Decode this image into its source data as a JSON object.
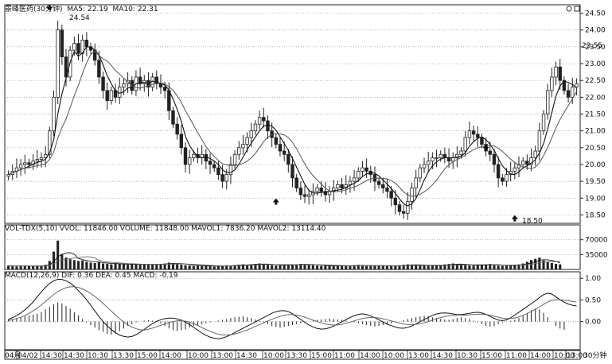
{
  "chart_data": [
    {
      "type": "candlestick",
      "title": "",
      "header": {
        "name": "景峰医药(30分钟)",
        "ma5_label": "MA5: 22.19",
        "ma10_label": "MA10: 22.31"
      },
      "yticks": [
        18.5,
        19.0,
        19.5,
        20.0,
        20.5,
        21.0,
        21.5,
        22.0,
        22.5,
        23.0,
        23.5,
        24.0,
        24.5
      ],
      "ytick_labels": [
        "18.50",
        "19.00",
        "19.50",
        "20.00",
        "20.50",
        "21.00",
        "21.50",
        "22.00",
        "22.50",
        "23.00",
        "23.50",
        "24.00",
        "24.50"
      ],
      "ylim": [
        18.25,
        24.75
      ],
      "current_price_label": "23.55",
      "annotations": [
        {
          "text": "24.54",
          "x": 14,
          "y": 24.54
        },
        {
          "text": "18.50",
          "x": 124,
          "y": 18.5
        }
      ],
      "up_arrows_at_x": [
        65,
        123,
        159,
        159
      ],
      "down_arrows_at_x": [
        10,
        116,
        149
      ],
      "closes": [
        19.7,
        19.8,
        19.9,
        20.0,
        20.05,
        20.0,
        20.1,
        20.15,
        20.2,
        20.3,
        21.0,
        22.0,
        24.0,
        23.2,
        22.6,
        23.4,
        23.6,
        23.3,
        23.7,
        23.5,
        23.4,
        23.1,
        22.6,
        22.2,
        21.9,
        22.2,
        22.0,
        22.3,
        22.4,
        22.5,
        22.2,
        22.6,
        22.4,
        22.5,
        22.3,
        22.6,
        22.4,
        22.3,
        22.2,
        21.6,
        21.2,
        20.9,
        20.5,
        20.0,
        20.2,
        20.3,
        20.2,
        20.3,
        20.1,
        20.0,
        19.9,
        19.7,
        19.5,
        19.7,
        20.0,
        20.3,
        20.5,
        20.6,
        20.8,
        21.0,
        21.2,
        21.4,
        21.3,
        21.0,
        20.8,
        20.6,
        20.4,
        20.3,
        20.0,
        19.6,
        19.3,
        19.1,
        19.05,
        19.1,
        19.2,
        19.3,
        19.2,
        19.1,
        19.2,
        19.3,
        19.4,
        19.3,
        19.4,
        19.5,
        19.6,
        19.8,
        19.9,
        19.8,
        19.7,
        19.5,
        19.4,
        19.3,
        19.2,
        19.0,
        18.8,
        18.6,
        18.55,
        18.9,
        19.3,
        19.6,
        19.9,
        20.0,
        20.1,
        20.2,
        20.2,
        20.3,
        20.2,
        20.1,
        20.2,
        20.3,
        20.4,
        20.8,
        21.0,
        20.9,
        20.8,
        20.6,
        20.4,
        20.3,
        20.0,
        19.6,
        19.5,
        19.7,
        19.8,
        19.9,
        20.0,
        20.1,
        20.0,
        20.2,
        20.4,
        21.0,
        21.5,
        22.2,
        22.6,
        22.9,
        22.5,
        22.2,
        22.0,
        22.3,
        22.4
      ],
      "xaxis_labels": [
        "04月",
        "04/02",
        "14:30",
        "14:30",
        "10:30",
        "13:30",
        "15:00",
        "14:00",
        "10:00",
        "13:00",
        "14:30",
        "10:00",
        "13:30",
        "15:00",
        "11:00",
        "14:00",
        "10:00",
        "13:00",
        "14:30",
        "10:30",
        "15:00",
        "11:00",
        "14:00",
        "10:00",
        "13:00",
        "30分钟"
      ]
    },
    {
      "type": "bar",
      "header": {
        "text": "VOL-TDX(5,10)  VVOL: 11846.00  VOLUME: 11848.00  MAVOL1: 7836.20  MAVOL2: 13114.40"
      },
      "yticks": [
        35000,
        70000
      ],
      "ytick_labels": [
        "35000",
        "70000"
      ],
      "ylim": [
        0,
        90000
      ],
      "values": [
        9000,
        8000,
        7000,
        9000,
        8500,
        8000,
        7500,
        9000,
        8000,
        11000,
        20000,
        42000,
        68000,
        36000,
        28000,
        24000,
        22000,
        20000,
        21000,
        18000,
        16000,
        15000,
        17000,
        14000,
        13000,
        12000,
        14000,
        13000,
        12000,
        11000,
        13000,
        12000,
        11000,
        12000,
        11000,
        13000,
        12000,
        13000,
        14000,
        16000,
        15000,
        12000,
        11000,
        10000,
        9000,
        8000,
        8500,
        8000,
        9000,
        7500,
        7000,
        8000,
        9000,
        10000,
        9000,
        10000,
        11000,
        12000,
        11000,
        12000,
        13000,
        14000,
        12000,
        11000,
        10000,
        9000,
        10000,
        11000,
        12000,
        11000,
        12000,
        13000,
        12000,
        11000,
        10000,
        9000,
        8000,
        9000,
        8500,
        8000,
        9000,
        8000,
        8500,
        9000,
        10000,
        11000,
        9000,
        8000,
        8500,
        9000,
        9500,
        8000,
        7500,
        8000,
        9000,
        10000,
        11000,
        12000,
        11000,
        10000,
        9000,
        9500,
        9000,
        8500,
        9000,
        10000,
        12000,
        13000,
        14000,
        12000,
        11000,
        10000,
        9500,
        9000,
        10000,
        11000,
        12000,
        13000,
        10000,
        9000,
        8500,
        9000,
        10000,
        11000,
        12000,
        14000,
        18000,
        22000,
        25000,
        28000,
        21000,
        17000,
        15000,
        13000,
        12000
      ]
    },
    {
      "type": "bar",
      "header": {
        "text": "MACD(12,26,9)  DIF: 0.36  DEA: 0.45  MACD: -0.19"
      },
      "yticks": [
        0.0,
        0.5,
        1.0
      ],
      "ytick_labels": [
        "0.00",
        "0.50",
        "1.00"
      ],
      "ylim": [
        -0.65,
        1.15
      ],
      "histogram": [
        0.05,
        0.06,
        0.08,
        0.1,
        0.12,
        0.14,
        0.16,
        0.18,
        0.22,
        0.28,
        0.34,
        0.4,
        0.44,
        0.42,
        0.36,
        0.3,
        0.22,
        0.14,
        0.06,
        -0.02,
        -0.08,
        -0.14,
        -0.2,
        -0.24,
        -0.28,
        -0.3,
        -0.28,
        -0.22,
        -0.16,
        -0.1,
        -0.06,
        -0.02,
        0.0,
        0.02,
        0.03,
        0.02,
        0.0,
        -0.04,
        -0.1,
        -0.16,
        -0.2,
        -0.22,
        -0.2,
        -0.18,
        -0.14,
        -0.1,
        -0.08,
        -0.06,
        -0.04,
        -0.02,
        0.0,
        0.02,
        0.04,
        0.06,
        0.08,
        0.1,
        0.11,
        0.12,
        0.1,
        0.08,
        0.05,
        0.02,
        -0.02,
        -0.06,
        -0.1,
        -0.12,
        -0.14,
        -0.12,
        -0.1,
        -0.08,
        -0.06,
        -0.04,
        -0.02,
        0.0,
        0.02,
        0.04,
        0.05,
        0.06,
        0.07,
        0.06,
        0.05,
        0.04,
        0.02,
        0.0,
        -0.02,
        -0.04,
        -0.06,
        -0.08,
        -0.1,
        -0.12,
        -0.1,
        -0.08,
        -0.06,
        -0.04,
        -0.02,
        0.0,
        0.03,
        0.06,
        0.08,
        0.1,
        0.12,
        0.13,
        0.12,
        0.1,
        0.08,
        0.06,
        0.05,
        0.04,
        0.06,
        0.08,
        0.1,
        0.08,
        0.06,
        0.02,
        -0.02,
        -0.06,
        -0.1,
        -0.12,
        -0.1,
        -0.06,
        -0.02,
        0.0,
        0.02,
        0.04,
        0.08,
        0.14,
        0.2,
        0.26,
        0.3,
        0.28,
        0.2,
        0.1,
        0.0,
        -0.1,
        -0.16,
        -0.19
      ],
      "dif": [
        0.05,
        0.1,
        0.16,
        0.24,
        0.34,
        0.46,
        0.6,
        0.74,
        0.86,
        0.94,
        0.98,
        0.97,
        0.92,
        0.84,
        0.72,
        0.6,
        0.46,
        0.3,
        0.14,
        0.0,
        -0.12,
        -0.22,
        -0.3,
        -0.34,
        -0.36,
        -0.34,
        -0.28,
        -0.2,
        -0.12,
        -0.04,
        0.02,
        0.06,
        0.08,
        0.08,
        0.06,
        0.02,
        -0.04,
        -0.12,
        -0.2,
        -0.28,
        -0.34,
        -0.38,
        -0.4,
        -0.38,
        -0.34,
        -0.28,
        -0.22,
        -0.16,
        -0.1,
        -0.04,
        0.02,
        0.08,
        0.14,
        0.2,
        0.24,
        0.26,
        0.24,
        0.18,
        0.1,
        0.02,
        -0.06,
        -0.12,
        -0.16,
        -0.18,
        -0.16,
        -0.12,
        -0.06,
        0.0,
        0.06,
        0.12,
        0.16,
        0.18,
        0.16,
        0.12,
        0.06,
        0.0,
        -0.06,
        -0.1,
        -0.14,
        -0.16,
        -0.14,
        -0.1,
        -0.04,
        0.02,
        0.08,
        0.14,
        0.18,
        0.2,
        0.2,
        0.18,
        0.16,
        0.16,
        0.18,
        0.2,
        0.22,
        0.2,
        0.16,
        0.1,
        0.04,
        0.02,
        0.04,
        0.1,
        0.18,
        0.26,
        0.34,
        0.42,
        0.5,
        0.6,
        0.66,
        0.64,
        0.56,
        0.48,
        0.42,
        0.38,
        0.36
      ],
      "dea": [
        0.02,
        0.05,
        0.08,
        0.12,
        0.18,
        0.25,
        0.33,
        0.42,
        0.52,
        0.62,
        0.7,
        0.76,
        0.8,
        0.81,
        0.79,
        0.75,
        0.69,
        0.61,
        0.52,
        0.42,
        0.31,
        0.2,
        0.1,
        0.0,
        -0.08,
        -0.14,
        -0.18,
        -0.2,
        -0.18,
        -0.15,
        -0.11,
        -0.07,
        -0.03,
        0.0,
        0.02,
        0.02,
        0.0,
        -0.04,
        -0.09,
        -0.15,
        -0.2,
        -0.25,
        -0.29,
        -0.31,
        -0.31,
        -0.3,
        -0.27,
        -0.23,
        -0.19,
        -0.14,
        -0.09,
        -0.04,
        0.01,
        0.06,
        0.1,
        0.14,
        0.16,
        0.16,
        0.15,
        0.12,
        0.08,
        0.04,
        0.0,
        -0.04,
        -0.07,
        -0.08,
        -0.08,
        -0.06,
        -0.03,
        0.0,
        0.04,
        0.07,
        0.09,
        0.1,
        0.09,
        0.07,
        0.04,
        0.01,
        -0.02,
        -0.05,
        -0.07,
        -0.07,
        -0.06,
        -0.04,
        -0.01,
        0.03,
        0.07,
        0.1,
        0.13,
        0.14,
        0.15,
        0.15,
        0.15,
        0.16,
        0.17,
        0.17,
        0.16,
        0.14,
        0.11,
        0.08,
        0.07,
        0.07,
        0.09,
        0.13,
        0.18,
        0.24,
        0.3,
        0.37,
        0.44,
        0.49,
        0.51,
        0.5,
        0.49,
        0.47,
        0.45
      ]
    }
  ]
}
